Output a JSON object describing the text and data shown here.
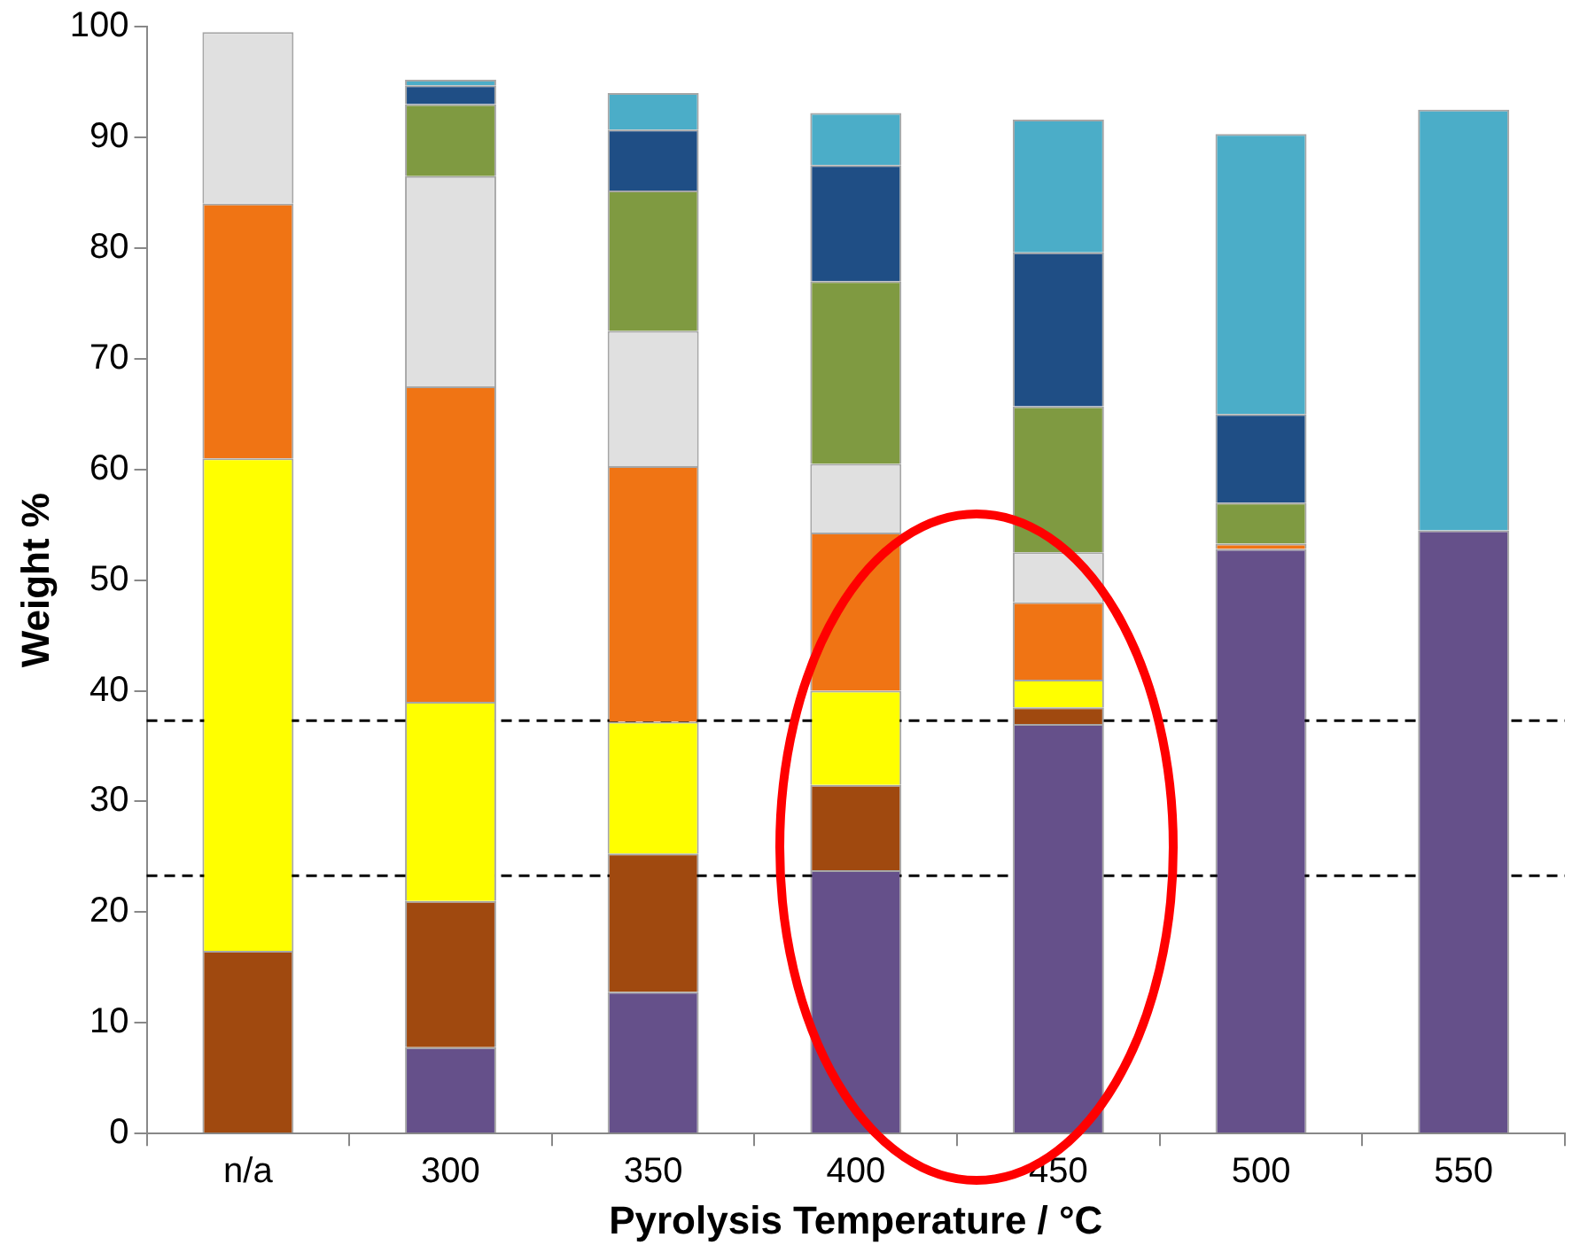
{
  "chart_data": {
    "type": "bar",
    "stacked": true,
    "xlabel": "Pyrolysis Temperature / °C",
    "ylabel": "Weight %",
    "categories": [
      "n/a",
      "300",
      "350",
      "400",
      "450",
      "500",
      "550"
    ],
    "ylim": [
      0,
      100
    ],
    "yticks": [
      0,
      10,
      20,
      30,
      40,
      50,
      60,
      70,
      80,
      90,
      100
    ],
    "grid": false,
    "legend": false,
    "series": [
      {
        "color": "#65508a",
        "values": [
          0,
          7.8,
          12.8,
          23.8,
          37,
          52.8,
          54.5
        ]
      },
      {
        "color": "#a0490f",
        "values": [
          16.5,
          13.2,
          12.5,
          7.7,
          1.5,
          0,
          0
        ]
      },
      {
        "color": "#ffff00",
        "values": [
          44.5,
          18,
          11.9,
          8.5,
          2.5,
          0,
          0
        ]
      },
      {
        "color": "#f07414",
        "values": [
          23,
          28.5,
          23.1,
          14.3,
          7,
          0.5,
          0
        ]
      },
      {
        "color": "#e0e0e0",
        "values": [
          15.5,
          19,
          12.2,
          6.2,
          4.5,
          0,
          0
        ]
      },
      {
        "color": "#7f9a41",
        "values": [
          0,
          6.5,
          12.7,
          16.5,
          13.2,
          3.7,
          0
        ]
      },
      {
        "color": "#1f4e85",
        "values": [
          0,
          1.7,
          5.5,
          10.5,
          13.9,
          8,
          0
        ]
      },
      {
        "color": "#4badc8",
        "values": [
          0,
          0.5,
          3.3,
          4.7,
          12,
          25.3,
          38
        ]
      }
    ],
    "ref_lines": [
      {
        "axis": "y",
        "value": 23.3,
        "line_style": "dashed",
        "color": "#000000"
      },
      {
        "axis": "y",
        "value": 37.3,
        "line_style": "dashed",
        "color": "#000000"
      }
    ]
  }
}
